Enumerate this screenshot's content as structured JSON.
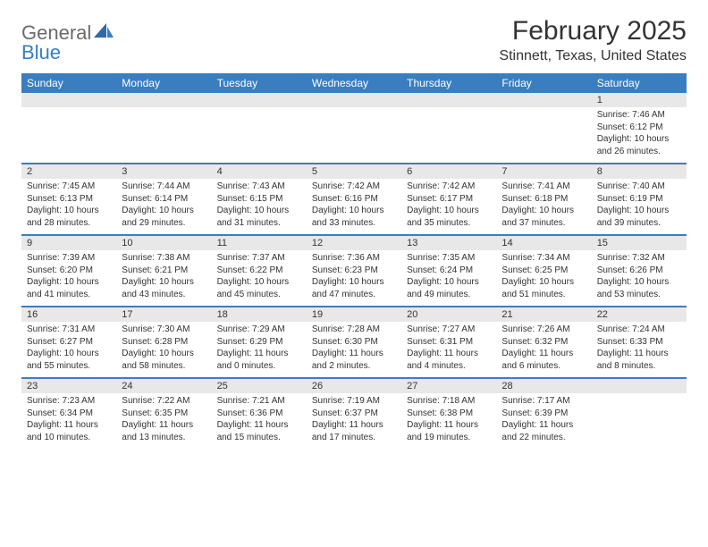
{
  "logo": {
    "word1": "General",
    "word2": "Blue"
  },
  "title": "February 2025",
  "location": "Stinnett, Texas, United States",
  "colors": {
    "brand_blue": "#3a7ebf",
    "header_text": "#ffffff",
    "daynum_bg": "#e8e8e8",
    "text": "#333333",
    "logo_gray": "#6b6b6b",
    "background": "#ffffff"
  },
  "weekdays": [
    "Sunday",
    "Monday",
    "Tuesday",
    "Wednesday",
    "Thursday",
    "Friday",
    "Saturday"
  ],
  "weeks": [
    [
      {
        "n": "",
        "sunrise": "",
        "sunset": "",
        "daylight": ""
      },
      {
        "n": "",
        "sunrise": "",
        "sunset": "",
        "daylight": ""
      },
      {
        "n": "",
        "sunrise": "",
        "sunset": "",
        "daylight": ""
      },
      {
        "n": "",
        "sunrise": "",
        "sunset": "",
        "daylight": ""
      },
      {
        "n": "",
        "sunrise": "",
        "sunset": "",
        "daylight": ""
      },
      {
        "n": "",
        "sunrise": "",
        "sunset": "",
        "daylight": ""
      },
      {
        "n": "1",
        "sunrise": "Sunrise: 7:46 AM",
        "sunset": "Sunset: 6:12 PM",
        "daylight": "Daylight: 10 hours and 26 minutes."
      }
    ],
    [
      {
        "n": "2",
        "sunrise": "Sunrise: 7:45 AM",
        "sunset": "Sunset: 6:13 PM",
        "daylight": "Daylight: 10 hours and 28 minutes."
      },
      {
        "n": "3",
        "sunrise": "Sunrise: 7:44 AM",
        "sunset": "Sunset: 6:14 PM",
        "daylight": "Daylight: 10 hours and 29 minutes."
      },
      {
        "n": "4",
        "sunrise": "Sunrise: 7:43 AM",
        "sunset": "Sunset: 6:15 PM",
        "daylight": "Daylight: 10 hours and 31 minutes."
      },
      {
        "n": "5",
        "sunrise": "Sunrise: 7:42 AM",
        "sunset": "Sunset: 6:16 PM",
        "daylight": "Daylight: 10 hours and 33 minutes."
      },
      {
        "n": "6",
        "sunrise": "Sunrise: 7:42 AM",
        "sunset": "Sunset: 6:17 PM",
        "daylight": "Daylight: 10 hours and 35 minutes."
      },
      {
        "n": "7",
        "sunrise": "Sunrise: 7:41 AM",
        "sunset": "Sunset: 6:18 PM",
        "daylight": "Daylight: 10 hours and 37 minutes."
      },
      {
        "n": "8",
        "sunrise": "Sunrise: 7:40 AM",
        "sunset": "Sunset: 6:19 PM",
        "daylight": "Daylight: 10 hours and 39 minutes."
      }
    ],
    [
      {
        "n": "9",
        "sunrise": "Sunrise: 7:39 AM",
        "sunset": "Sunset: 6:20 PM",
        "daylight": "Daylight: 10 hours and 41 minutes."
      },
      {
        "n": "10",
        "sunrise": "Sunrise: 7:38 AM",
        "sunset": "Sunset: 6:21 PM",
        "daylight": "Daylight: 10 hours and 43 minutes."
      },
      {
        "n": "11",
        "sunrise": "Sunrise: 7:37 AM",
        "sunset": "Sunset: 6:22 PM",
        "daylight": "Daylight: 10 hours and 45 minutes."
      },
      {
        "n": "12",
        "sunrise": "Sunrise: 7:36 AM",
        "sunset": "Sunset: 6:23 PM",
        "daylight": "Daylight: 10 hours and 47 minutes."
      },
      {
        "n": "13",
        "sunrise": "Sunrise: 7:35 AM",
        "sunset": "Sunset: 6:24 PM",
        "daylight": "Daylight: 10 hours and 49 minutes."
      },
      {
        "n": "14",
        "sunrise": "Sunrise: 7:34 AM",
        "sunset": "Sunset: 6:25 PM",
        "daylight": "Daylight: 10 hours and 51 minutes."
      },
      {
        "n": "15",
        "sunrise": "Sunrise: 7:32 AM",
        "sunset": "Sunset: 6:26 PM",
        "daylight": "Daylight: 10 hours and 53 minutes."
      }
    ],
    [
      {
        "n": "16",
        "sunrise": "Sunrise: 7:31 AM",
        "sunset": "Sunset: 6:27 PM",
        "daylight": "Daylight: 10 hours and 55 minutes."
      },
      {
        "n": "17",
        "sunrise": "Sunrise: 7:30 AM",
        "sunset": "Sunset: 6:28 PM",
        "daylight": "Daylight: 10 hours and 58 minutes."
      },
      {
        "n": "18",
        "sunrise": "Sunrise: 7:29 AM",
        "sunset": "Sunset: 6:29 PM",
        "daylight": "Daylight: 11 hours and 0 minutes."
      },
      {
        "n": "19",
        "sunrise": "Sunrise: 7:28 AM",
        "sunset": "Sunset: 6:30 PM",
        "daylight": "Daylight: 11 hours and 2 minutes."
      },
      {
        "n": "20",
        "sunrise": "Sunrise: 7:27 AM",
        "sunset": "Sunset: 6:31 PM",
        "daylight": "Daylight: 11 hours and 4 minutes."
      },
      {
        "n": "21",
        "sunrise": "Sunrise: 7:26 AM",
        "sunset": "Sunset: 6:32 PM",
        "daylight": "Daylight: 11 hours and 6 minutes."
      },
      {
        "n": "22",
        "sunrise": "Sunrise: 7:24 AM",
        "sunset": "Sunset: 6:33 PM",
        "daylight": "Daylight: 11 hours and 8 minutes."
      }
    ],
    [
      {
        "n": "23",
        "sunrise": "Sunrise: 7:23 AM",
        "sunset": "Sunset: 6:34 PM",
        "daylight": "Daylight: 11 hours and 10 minutes."
      },
      {
        "n": "24",
        "sunrise": "Sunrise: 7:22 AM",
        "sunset": "Sunset: 6:35 PM",
        "daylight": "Daylight: 11 hours and 13 minutes."
      },
      {
        "n": "25",
        "sunrise": "Sunrise: 7:21 AM",
        "sunset": "Sunset: 6:36 PM",
        "daylight": "Daylight: 11 hours and 15 minutes."
      },
      {
        "n": "26",
        "sunrise": "Sunrise: 7:19 AM",
        "sunset": "Sunset: 6:37 PM",
        "daylight": "Daylight: 11 hours and 17 minutes."
      },
      {
        "n": "27",
        "sunrise": "Sunrise: 7:18 AM",
        "sunset": "Sunset: 6:38 PM",
        "daylight": "Daylight: 11 hours and 19 minutes."
      },
      {
        "n": "28",
        "sunrise": "Sunrise: 7:17 AM",
        "sunset": "Sunset: 6:39 PM",
        "daylight": "Daylight: 11 hours and 22 minutes."
      },
      {
        "n": "",
        "sunrise": "",
        "sunset": "",
        "daylight": ""
      }
    ]
  ]
}
